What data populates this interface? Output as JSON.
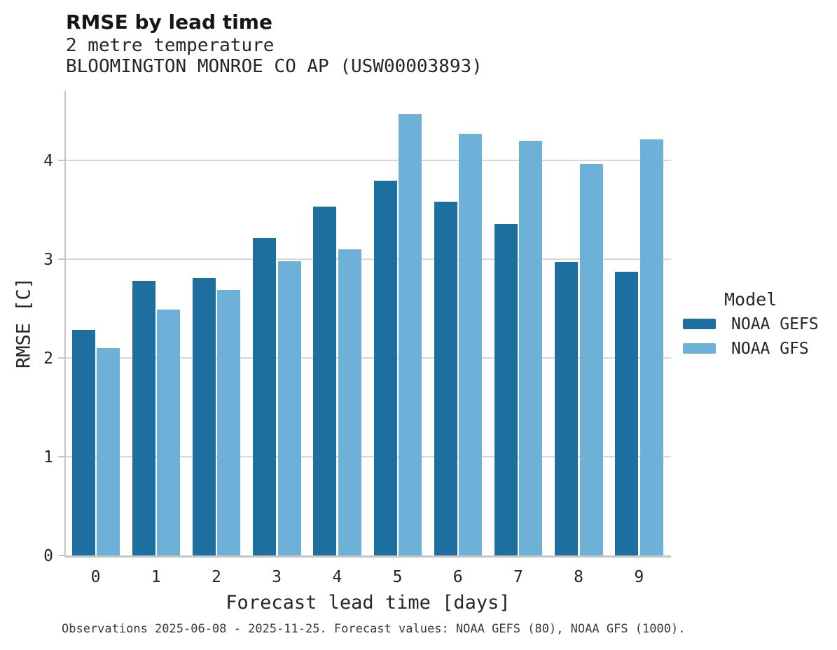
{
  "header": {
    "title": "RMSE by lead time",
    "subtitle1": "2 metre temperature",
    "subtitle2": "BLOOMINGTON MONROE CO AP (USW00003893)"
  },
  "chart_data": {
    "type": "bar",
    "title": "RMSE by lead time",
    "subtitle": [
      "2 metre temperature",
      "BLOOMINGTON MONROE CO AP (USW00003893)"
    ],
    "categories": [
      "0",
      "1",
      "2",
      "3",
      "4",
      "5",
      "6",
      "7",
      "8",
      "9"
    ],
    "series": [
      {
        "name": "NOAA GEFS",
        "color": "#1d6f9f",
        "values": [
          2.28,
          2.78,
          2.81,
          3.21,
          3.53,
          3.79,
          3.58,
          3.35,
          2.97,
          2.87
        ]
      },
      {
        "name": "NOAA GFS",
        "color": "#6db1d9",
        "values": [
          2.1,
          2.49,
          2.69,
          2.98,
          3.1,
          4.47,
          4.27,
          4.2,
          3.96,
          4.21
        ]
      }
    ],
    "xlabel": "Forecast lead time [days]",
    "ylabel": "RMSE [C]",
    "ylim": [
      0,
      4.7
    ],
    "yticks": [
      0,
      1,
      2,
      3,
      4
    ],
    "grid": "horizontal",
    "legend_title": "Model",
    "legend_position": "right"
  },
  "legend": {
    "title": "Model",
    "entries": [
      {
        "label": "NOAA GEFS",
        "color": "#1d6f9f"
      },
      {
        "label": "NOAA GFS",
        "color": "#6db1d9"
      }
    ]
  },
  "footer": {
    "text": "Observations 2025-06-08 - 2025-11-25. Forecast values: NOAA GEFS (80), NOAA GFS (1000)."
  },
  "colors": {
    "gefs": "#1d6f9f",
    "gfs": "#6db1d9",
    "gridline": "#d8d8d8",
    "spine": "#c6c6c6",
    "background": "#ffffff"
  }
}
